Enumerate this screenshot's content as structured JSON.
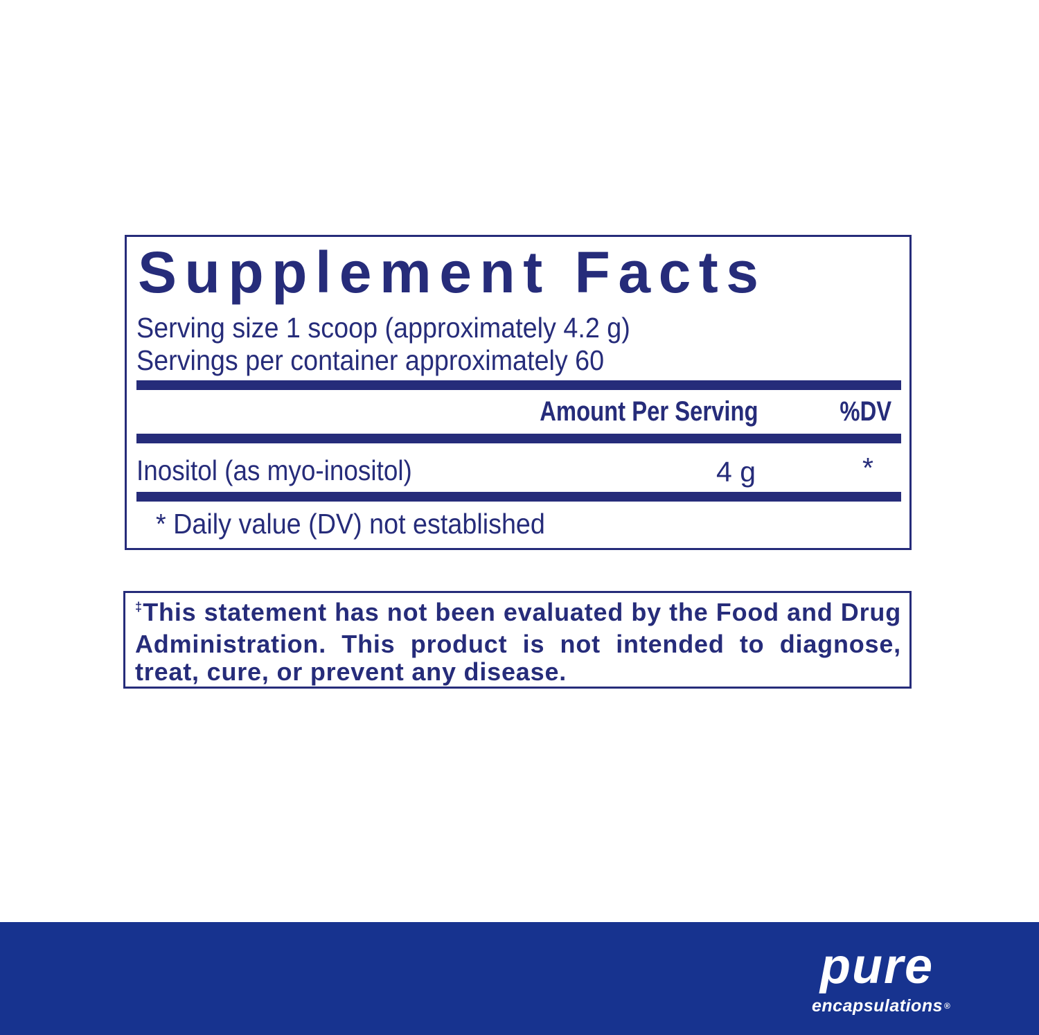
{
  "facts": {
    "title": "Supplement Facts",
    "serving_size": "Serving size  1 scoop (approximately 4.2 g)",
    "servings_per_container": "Servings per container  approximately 60",
    "header_amount": "Amount Per Serving",
    "header_dv": "%DV",
    "rows": [
      {
        "name": "Inositol (as myo-inositol)",
        "amount": "4 g",
        "dv": "*"
      }
    ],
    "footnote": "* Daily value (DV) not established"
  },
  "disclaimer": {
    "mark": "‡",
    "text": "This statement has not been evaluated by the Food and Drug Administration. This product is not intended to diagnose, treat, cure, or prevent any disease."
  },
  "footer": {
    "color": "#17338f",
    "logo_line1": "pure",
    "logo_line2": "encapsulations",
    "logo_reg": "®"
  },
  "colors": {
    "text": "#262c7a",
    "band": "#17338f"
  }
}
